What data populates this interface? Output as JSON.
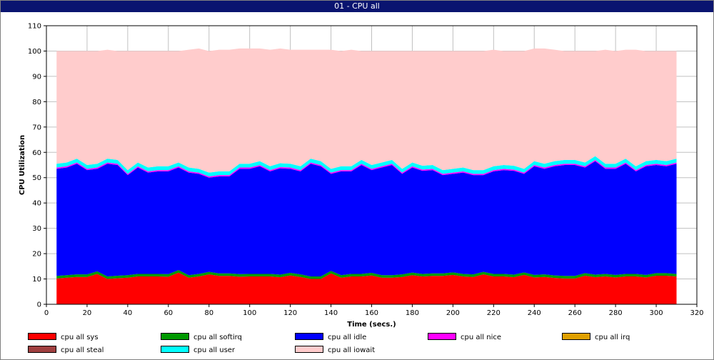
{
  "window": {
    "title": "01 - CPU all"
  },
  "chart_data": {
    "type": "area",
    "stacked": true,
    "title": "01 - CPU all",
    "xlabel": "Time (secs.)",
    "ylabel": "CPU Utilization",
    "xlim": [
      0,
      320
    ],
    "ylim": [
      0,
      110
    ],
    "x_ticks": [
      0,
      20,
      40,
      60,
      80,
      100,
      120,
      140,
      160,
      180,
      200,
      220,
      240,
      260,
      280,
      300,
      320
    ],
    "y_ticks": [
      0,
      10,
      20,
      30,
      40,
      50,
      60,
      70,
      80,
      90,
      100,
      110
    ],
    "grid": true,
    "legend_position": "bottom",
    "x": [
      5,
      10,
      15,
      20,
      25,
      30,
      35,
      40,
      45,
      50,
      55,
      60,
      65,
      70,
      75,
      80,
      85,
      90,
      95,
      100,
      105,
      110,
      115,
      120,
      125,
      130,
      135,
      140,
      145,
      150,
      155,
      160,
      165,
      170,
      175,
      180,
      185,
      190,
      195,
      200,
      205,
      210,
      215,
      220,
      225,
      230,
      235,
      240,
      245,
      250,
      255,
      260,
      265,
      270,
      275,
      280,
      285,
      290,
      295,
      300,
      305,
      310
    ],
    "series": [
      {
        "name": "cpu all sys",
        "color": "#ff0000",
        "values": [
          10.2,
          10.5,
          10.8,
          10.8,
          12.0,
          10.0,
          10.3,
          10.5,
          11.0,
          11.0,
          11.0,
          10.9,
          12.5,
          10.5,
          11.0,
          11.8,
          11.2,
          11.2,
          10.9,
          11.0,
          11.0,
          11.0,
          10.7,
          11.4,
          10.8,
          10.0,
          10.0,
          12.2,
          10.5,
          11.0,
          11.0,
          11.4,
          10.5,
          10.5,
          10.8,
          11.5,
          11.0,
          11.2,
          11.2,
          11.6,
          11.0,
          10.8,
          11.8,
          11.0,
          11.0,
          10.7,
          11.6,
          10.6,
          10.8,
          10.4,
          10.2,
          10.2,
          11.3,
          10.7,
          11.0,
          10.6,
          11.0,
          11.0,
          10.6,
          11.3,
          11.3,
          11.0
        ]
      },
      {
        "name": "cpu all softirq",
        "color": "#009900",
        "values": [
          1.0,
          1.0,
          1.0,
          1.0,
          1.0,
          1.0,
          1.0,
          1.0,
          1.0,
          1.0,
          1.0,
          1.0,
          1.0,
          1.0,
          1.0,
          1.0,
          1.0,
          1.0,
          1.0,
          1.0,
          1.0,
          1.0,
          1.0,
          1.0,
          1.0,
          1.0,
          1.0,
          1.0,
          1.0,
          1.0,
          1.0,
          1.0,
          1.0,
          1.0,
          1.0,
          1.0,
          1.0,
          1.0,
          1.0,
          1.0,
          1.0,
          1.0,
          1.0,
          1.0,
          1.0,
          1.0,
          1.0,
          1.0,
          1.0,
          1.0,
          1.0,
          1.0,
          1.0,
          1.0,
          1.0,
          1.0,
          1.0,
          1.0,
          1.0,
          1.0,
          1.0,
          1.0
        ]
      },
      {
        "name": "cpu all idle",
        "color": "#0000ff",
        "values": [
          42.3,
          42.5,
          43.7,
          41.2,
          40.5,
          44.5,
          43.7,
          39.5,
          42.0,
          40.0,
          40.5,
          40.6,
          40.5,
          40.5,
          39.5,
          37.2,
          38.3,
          38.3,
          41.6,
          41.5,
          42.5,
          40.5,
          42.0,
          41.1,
          40.7,
          44.5,
          43.5,
          38.3,
          41.0,
          40.5,
          43.0,
          40.6,
          42.5,
          43.5,
          39.7,
          41.5,
          40.7,
          40.8,
          38.8,
          38.9,
          40.0,
          39.2,
          38.2,
          40.5,
          41.0,
          41.0,
          38.9,
          42.9,
          41.7,
          43.1,
          43.8,
          43.8,
          41.7,
          44.8,
          41.5,
          41.9,
          43.5,
          40.5,
          42.9,
          42.7,
          42.2,
          43.5
        ]
      },
      {
        "name": "cpu all nice",
        "color": "#ff00ff",
        "values": [
          0.5,
          0.5,
          0.5,
          0.5,
          0.5,
          0.5,
          0.5,
          0.5,
          0.5,
          0.5,
          0.5,
          0.5,
          0.5,
          0.5,
          0.5,
          0.5,
          0.5,
          0.5,
          0.5,
          0.5,
          0.5,
          0.5,
          0.5,
          0.5,
          0.5,
          0.5,
          0.5,
          0.5,
          0.5,
          0.5,
          0.5,
          0.5,
          0.5,
          0.5,
          0.5,
          0.5,
          0.5,
          0.5,
          0.5,
          0.5,
          0.5,
          0.5,
          0.5,
          0.5,
          0.5,
          0.5,
          0.5,
          0.5,
          0.5,
          0.5,
          0.5,
          0.5,
          0.5,
          0.5,
          0.5,
          0.5,
          0.5,
          0.5,
          0.5,
          0.5,
          0.5,
          0.5
        ]
      },
      {
        "name": "cpu all irq",
        "color": "#e0a000",
        "values": [
          0,
          0,
          0,
          0,
          0,
          0,
          0,
          0,
          0,
          0,
          0,
          0,
          0,
          0,
          0,
          0,
          0,
          0,
          0,
          0,
          0,
          0,
          0,
          0,
          0,
          0,
          0,
          0,
          0,
          0,
          0,
          0,
          0,
          0,
          0,
          0,
          0,
          0,
          0,
          0,
          0,
          0,
          0,
          0,
          0,
          0,
          0,
          0,
          0,
          0,
          0,
          0,
          0,
          0,
          0,
          0,
          0,
          0,
          0,
          0,
          0,
          0
        ]
      },
      {
        "name": "cpu all steal",
        "color": "#a04040",
        "values": [
          0,
          0,
          0,
          0,
          0,
          0,
          0,
          0,
          0,
          0,
          0,
          0,
          0,
          0,
          0,
          0,
          0,
          0,
          0,
          0,
          0,
          0,
          0,
          0,
          0,
          0,
          0,
          0,
          0,
          0,
          0,
          0,
          0,
          0,
          0,
          0,
          0,
          0,
          0,
          0,
          0,
          0,
          0,
          0,
          0,
          0,
          0,
          0,
          0,
          0,
          0,
          0,
          0,
          0,
          0,
          0,
          0,
          0,
          0,
          0,
          0,
          0
        ]
      },
      {
        "name": "cpu all user",
        "color": "#00ffff",
        "values": [
          1.5,
          1.5,
          1.5,
          1.5,
          1.5,
          1.5,
          1.5,
          1.5,
          1.5,
          1.5,
          1.5,
          1.5,
          1.5,
          1.5,
          1.5,
          1.5,
          1.5,
          1.5,
          1.5,
          1.5,
          1.5,
          1.5,
          1.5,
          1.5,
          1.5,
          1.5,
          1.5,
          1.5,
          1.5,
          1.5,
          1.5,
          1.5,
          1.5,
          1.5,
          1.5,
          1.5,
          1.5,
          1.5,
          1.5,
          1.5,
          1.5,
          1.5,
          1.5,
          1.5,
          1.5,
          1.5,
          1.5,
          1.5,
          1.5,
          1.5,
          1.5,
          1.5,
          1.5,
          1.5,
          1.5,
          1.5,
          1.5,
          1.5,
          1.5,
          1.5,
          1.5,
          1.5
        ]
      },
      {
        "name": "cpu all iowait",
        "color": "#ffcccc",
        "values": [
          44.5,
          44.0,
          42.5,
          45.0,
          44.5,
          43.0,
          43.0,
          47.0,
          44.0,
          46.0,
          45.5,
          45.5,
          44.0,
          46.5,
          47.5,
          48.0,
          48.0,
          48.0,
          45.5,
          45.5,
          44.5,
          46.0,
          45.3,
          45.0,
          46.0,
          43.0,
          44.0,
          47.0,
          45.5,
          46.0,
          43.0,
          45.0,
          44.0,
          43.0,
          46.5,
          44.0,
          45.3,
          45.0,
          47.0,
          46.5,
          46.0,
          47.0,
          47.0,
          46.0,
          45.0,
          45.3,
          46.5,
          44.5,
          45.5,
          44.0,
          43.0,
          43.0,
          44.0,
          41.5,
          45.0,
          44.5,
          43.0,
          46.0,
          43.5,
          43.0,
          43.5,
          42.5
        ]
      }
    ]
  }
}
